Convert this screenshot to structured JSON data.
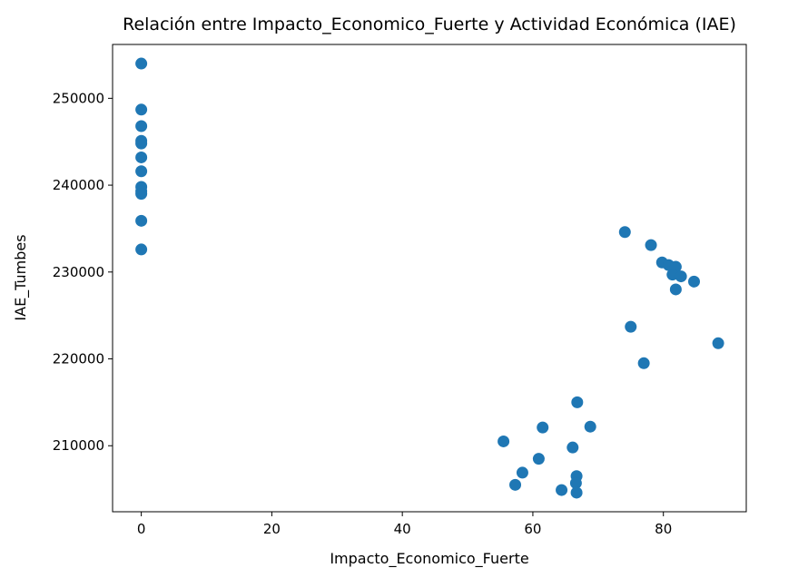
{
  "chart_data": {
    "type": "scatter",
    "title": "Relación entre Impacto_Economico_Fuerte y Actividad Económica (IAE)",
    "xlabel": "Impacto_Economico_Fuerte",
    "ylabel": "IAE_Tumbes",
    "xlim": [
      -4.4,
      92.7
    ],
    "ylim": [
      202400,
      256200
    ],
    "xticks": [
      0,
      20,
      40,
      60,
      80
    ],
    "xtick_labels": [
      "0",
      "20",
      "40",
      "60",
      "80"
    ],
    "yticks": [
      210000,
      220000,
      230000,
      240000,
      250000
    ],
    "ytick_labels": [
      "210000",
      "220000",
      "230000",
      "240000",
      "250000"
    ],
    "grid": false,
    "marker_color": "#1f77b4",
    "points": [
      {
        "x": 0,
        "y": 254000
      },
      {
        "x": 0,
        "y": 248700
      },
      {
        "x": 0,
        "y": 246800
      },
      {
        "x": 0,
        "y": 245100
      },
      {
        "x": 0,
        "y": 244800
      },
      {
        "x": 0,
        "y": 243200
      },
      {
        "x": 0,
        "y": 241600
      },
      {
        "x": 0,
        "y": 239800
      },
      {
        "x": 0,
        "y": 239300
      },
      {
        "x": 0,
        "y": 239000
      },
      {
        "x": 0,
        "y": 235900
      },
      {
        "x": 0,
        "y": 232600
      },
      {
        "x": 74.1,
        "y": 234600
      },
      {
        "x": 78.1,
        "y": 233100
      },
      {
        "x": 79.8,
        "y": 231100
      },
      {
        "x": 80.8,
        "y": 230800
      },
      {
        "x": 81.9,
        "y": 230600
      },
      {
        "x": 81.4,
        "y": 229700
      },
      {
        "x": 82.7,
        "y": 229500
      },
      {
        "x": 84.7,
        "y": 228900
      },
      {
        "x": 81.9,
        "y": 228000
      },
      {
        "x": 75.0,
        "y": 223700
      },
      {
        "x": 88.4,
        "y": 221800
      },
      {
        "x": 77.0,
        "y": 219500
      },
      {
        "x": 66.8,
        "y": 215000
      },
      {
        "x": 61.5,
        "y": 212100
      },
      {
        "x": 68.8,
        "y": 212200
      },
      {
        "x": 55.5,
        "y": 210500
      },
      {
        "x": 66.1,
        "y": 209800
      },
      {
        "x": 60.9,
        "y": 208500
      },
      {
        "x": 58.4,
        "y": 206900
      },
      {
        "x": 66.7,
        "y": 206500
      },
      {
        "x": 66.6,
        "y": 205700
      },
      {
        "x": 57.3,
        "y": 205500
      },
      {
        "x": 64.4,
        "y": 204900
      },
      {
        "x": 66.7,
        "y": 204600
      }
    ]
  }
}
